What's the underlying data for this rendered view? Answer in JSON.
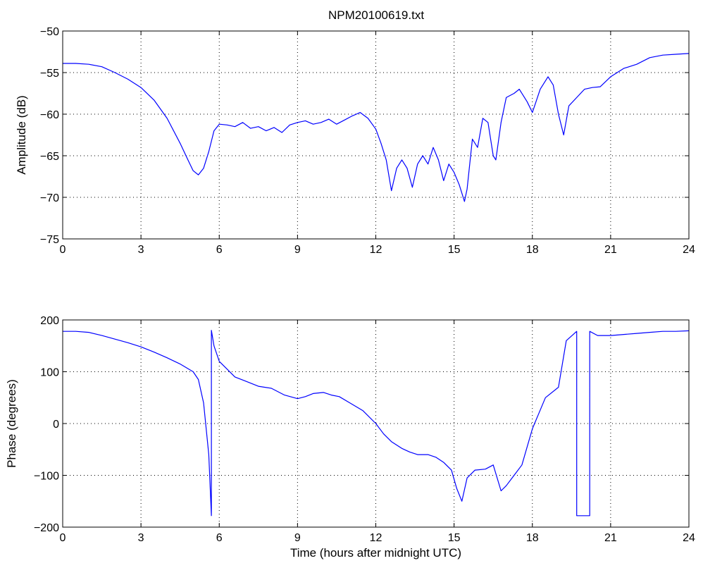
{
  "figure": {
    "title": "NPM20100619.txt"
  },
  "chart_data": [
    {
      "type": "line",
      "title": "NPM20100619.txt",
      "xlabel": "",
      "ylabel": "Amplitude (dB)",
      "xlim": [
        0,
        24
      ],
      "ylim": [
        -75,
        -50
      ],
      "xticks": [
        0,
        3,
        6,
        9,
        12,
        15,
        18,
        21,
        24
      ],
      "yticks": [
        -75,
        -70,
        -65,
        -60,
        -55,
        -50
      ],
      "grid": true,
      "series": [
        {
          "color": "#0000ff",
          "x": [
            0,
            0.5,
            1.0,
            1.5,
            2.0,
            2.5,
            3.0,
            3.5,
            4.0,
            4.5,
            4.8,
            5.0,
            5.2,
            5.4,
            5.6,
            5.8,
            6.0,
            6.3,
            6.6,
            6.9,
            7.2,
            7.5,
            7.8,
            8.1,
            8.4,
            8.7,
            9.0,
            9.3,
            9.6,
            9.9,
            10.2,
            10.5,
            10.8,
            11.1,
            11.4,
            11.7,
            12.0,
            12.2,
            12.4,
            12.6,
            12.8,
            13.0,
            13.2,
            13.4,
            13.6,
            13.8,
            14.0,
            14.2,
            14.4,
            14.6,
            14.8,
            15.0,
            15.2,
            15.4,
            15.5,
            15.7,
            15.9,
            16.1,
            16.3,
            16.5,
            16.6,
            16.8,
            17.0,
            17.3,
            17.5,
            17.8,
            18.0,
            18.3,
            18.6,
            18.8,
            19.0,
            19.2,
            19.4,
            19.7,
            20.0,
            20.3,
            20.6,
            21.0,
            21.5,
            22.0,
            22.5,
            23.0,
            23.5,
            24.0
          ],
          "y": [
            -53.9,
            -53.9,
            -54.0,
            -54.3,
            -55.0,
            -55.8,
            -56.8,
            -58.3,
            -60.5,
            -63.5,
            -65.5,
            -66.8,
            -67.3,
            -66.5,
            -64.5,
            -62.0,
            -61.2,
            -61.3,
            -61.5,
            -61.0,
            -61.7,
            -61.5,
            -62.0,
            -61.6,
            -62.2,
            -61.3,
            -61.0,
            -60.8,
            -61.2,
            -61.0,
            -60.6,
            -61.2,
            -60.7,
            -60.2,
            -59.8,
            -60.5,
            -61.8,
            -63.5,
            -65.5,
            -69.2,
            -66.5,
            -65.5,
            -66.5,
            -68.8,
            -66.0,
            -65.0,
            -66.0,
            -64.0,
            -65.5,
            -68.0,
            -66.0,
            -67.0,
            -68.5,
            -70.5,
            -69.0,
            -63.0,
            -64.0,
            -60.5,
            -61.0,
            -65.0,
            -65.5,
            -61.0,
            -58.0,
            -57.5,
            -57.0,
            -58.5,
            -59.8,
            -57.0,
            -55.5,
            -56.5,
            -60.0,
            -62.5,
            -59.0,
            -58.0,
            -57.0,
            -56.8,
            -56.7,
            -55.5,
            -54.5,
            -54.0,
            -53.2,
            -52.9,
            -52.8,
            -52.7
          ]
        }
      ]
    },
    {
      "type": "line",
      "title": "",
      "xlabel": "Time (hours after midnight UTC)",
      "ylabel": "Phase (degrees)",
      "xlim": [
        0,
        24
      ],
      "ylim": [
        -200,
        200
      ],
      "xticks": [
        0,
        3,
        6,
        9,
        12,
        15,
        18,
        21,
        24
      ],
      "yticks": [
        -200,
        -100,
        0,
        100,
        200
      ],
      "grid": true,
      "series": [
        {
          "color": "#0000ff",
          "x": [
            0,
            0.5,
            1.0,
            1.5,
            2.0,
            2.5,
            3.0,
            3.5,
            4.0,
            4.5,
            5.0,
            5.2,
            5.4,
            5.6,
            5.7,
            5.7,
            5.8,
            6.0,
            6.3,
            6.6,
            7.0,
            7.5,
            8.0,
            8.5,
            9.0,
            9.3,
            9.6,
            10.0,
            10.3,
            10.6,
            11.0,
            11.5,
            12.0,
            12.3,
            12.6,
            13.0,
            13.3,
            13.6,
            14.0,
            14.3,
            14.6,
            14.9,
            15.1,
            15.3,
            15.5,
            15.8,
            16.2,
            16.5,
            16.8,
            17.0,
            17.3,
            17.6,
            18.0,
            18.5,
            19.0,
            19.3,
            19.7,
            19.7,
            20.2,
            20.2,
            20.5,
            21.0,
            21.5,
            22.0,
            22.5,
            23.0,
            23.5,
            24.0
          ],
          "y": [
            178,
            178,
            176,
            170,
            163,
            156,
            148,
            138,
            127,
            115,
            100,
            85,
            40,
            -60,
            -178,
            180,
            150,
            120,
            105,
            90,
            82,
            72,
            68,
            55,
            48,
            52,
            58,
            60,
            55,
            52,
            40,
            25,
            0,
            -20,
            -35,
            -48,
            -55,
            -60,
            -60,
            -65,
            -75,
            -90,
            -125,
            -150,
            -105,
            -90,
            -88,
            -80,
            -130,
            -120,
            -100,
            -80,
            -10,
            50,
            70,
            160,
            178,
            -178,
            -178,
            178,
            170,
            170,
            172,
            174,
            176,
            178,
            178,
            179
          ]
        }
      ]
    }
  ]
}
